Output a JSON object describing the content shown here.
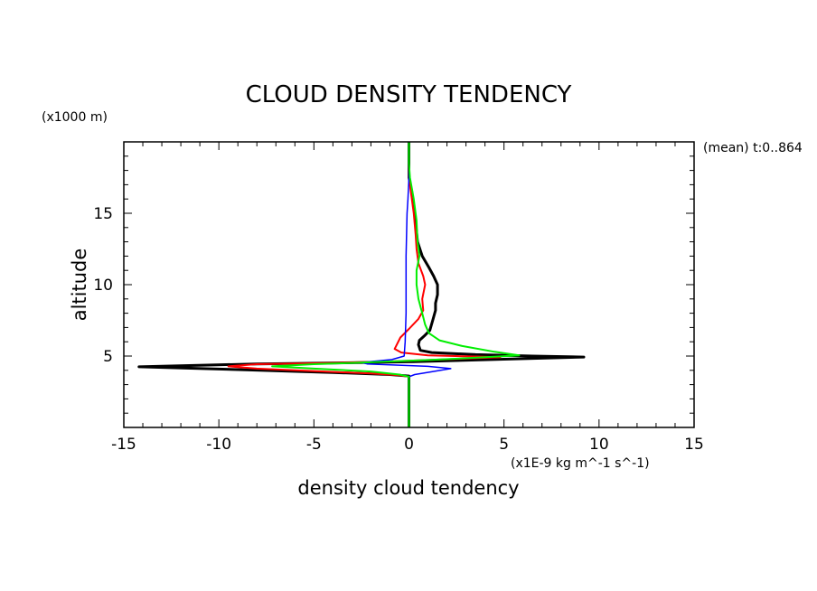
{
  "chart_data": {
    "type": "line",
    "title": "CLOUD DENSITY TENDENCY",
    "xlabel": "density cloud tendency",
    "ylabel": "altitude",
    "x_units": "(x1E-9 kg m^-1 s^-1)",
    "y_units": "(x1000 m)",
    "annotation": "(mean) t:0..864",
    "xlim": [
      -15,
      15
    ],
    "ylim": [
      0,
      20
    ],
    "xticks": [
      -15,
      -10,
      -5,
      0,
      5,
      10,
      15
    ],
    "yticks": [
      5,
      10,
      15
    ],
    "xtick_labels": [
      "-15",
      "-10",
      "-5",
      "0",
      "5",
      "10",
      "15"
    ],
    "ytick_labels": [
      "5",
      "10",
      "15"
    ],
    "grid": false,
    "series": [
      {
        "color": "#000000",
        "width": 3,
        "points": [
          [
            0,
            20
          ],
          [
            0,
            18.6
          ],
          [
            0,
            17.5
          ],
          [
            0.15,
            16.5
          ],
          [
            0.3,
            15
          ],
          [
            0.45,
            13
          ],
          [
            0.7,
            12
          ],
          [
            1.05,
            11.2
          ],
          [
            1.3,
            10.6
          ],
          [
            1.5,
            10
          ],
          [
            1.5,
            9.3
          ],
          [
            1.4,
            8.7
          ],
          [
            1.4,
            8.2
          ],
          [
            1.25,
            7.5
          ],
          [
            1.1,
            6.8
          ],
          [
            0.8,
            6.4
          ],
          [
            0.55,
            6.1
          ],
          [
            0.5,
            5.8
          ],
          [
            0.6,
            5.4
          ],
          [
            1.2,
            5.25
          ],
          [
            3.5,
            5.1
          ],
          [
            6.5,
            5
          ],
          [
            9.2,
            4.93
          ],
          [
            5,
            4.78
          ],
          [
            2,
            4.67
          ],
          [
            0.2,
            4.6
          ],
          [
            -3,
            4.53
          ],
          [
            -8,
            4.45
          ],
          [
            -14.2,
            4.25
          ],
          [
            -9,
            4.05
          ],
          [
            -4,
            3.85
          ],
          [
            -1,
            3.7
          ],
          [
            0,
            3.6
          ],
          [
            0,
            2.5
          ],
          [
            0,
            0
          ]
        ]
      },
      {
        "color": "#ff0000",
        "width": 2,
        "points": [
          [
            0,
            20
          ],
          [
            0,
            17.5
          ],
          [
            0.1,
            16.5
          ],
          [
            0.25,
            15
          ],
          [
            0.35,
            13.5
          ],
          [
            0.4,
            12.5
          ],
          [
            0.5,
            11.5
          ],
          [
            0.75,
            10.6
          ],
          [
            0.85,
            10
          ],
          [
            0.7,
            9
          ],
          [
            0.75,
            8.2
          ],
          [
            0.5,
            7.6
          ],
          [
            0,
            6.9
          ],
          [
            -0.45,
            6.3
          ],
          [
            -0.75,
            5.5
          ],
          [
            -0.4,
            5.25
          ],
          [
            1,
            5.05
          ],
          [
            3,
            4.98
          ],
          [
            4.8,
            4.92
          ],
          [
            3,
            4.82
          ],
          [
            1,
            4.72
          ],
          [
            -1,
            4.62
          ],
          [
            -4,
            4.52
          ],
          [
            -8,
            4.43
          ],
          [
            -9.5,
            4.28
          ],
          [
            -8,
            4.12
          ],
          [
            -5,
            3.95
          ],
          [
            -2,
            3.78
          ],
          [
            -0.5,
            3.65
          ],
          [
            0,
            3.55
          ],
          [
            0,
            0
          ]
        ]
      },
      {
        "color": "#0000ff",
        "width": 1.5,
        "points": [
          [
            0,
            20
          ],
          [
            0,
            17.5
          ],
          [
            -0.05,
            16
          ],
          [
            -0.1,
            15
          ],
          [
            -0.15,
            12
          ],
          [
            -0.15,
            8
          ],
          [
            -0.2,
            6
          ],
          [
            -0.25,
            5
          ],
          [
            -0.9,
            4.75
          ],
          [
            -2.5,
            4.55
          ],
          [
            -2.2,
            4.45
          ],
          [
            1,
            4.28
          ],
          [
            2.2,
            4.12
          ],
          [
            1.2,
            3.9
          ],
          [
            0.3,
            3.7
          ],
          [
            0,
            3.55
          ],
          [
            0,
            0
          ]
        ]
      },
      {
        "color": "#00ee00",
        "width": 2,
        "points": [
          [
            0,
            20
          ],
          [
            0,
            18.5
          ],
          [
            0.05,
            17.5
          ],
          [
            0.25,
            16
          ],
          [
            0.4,
            14.5
          ],
          [
            0.45,
            13
          ],
          [
            0.55,
            12
          ],
          [
            0.4,
            11
          ],
          [
            0.4,
            10
          ],
          [
            0.5,
            9
          ],
          [
            0.7,
            8
          ],
          [
            0.85,
            7.2
          ],
          [
            1.05,
            6.6
          ],
          [
            1.6,
            6.1
          ],
          [
            2.8,
            5.7
          ],
          [
            4.5,
            5.3
          ],
          [
            5.8,
            5.05
          ],
          [
            3,
            4.85
          ],
          [
            1,
            4.72
          ],
          [
            -1,
            4.62
          ],
          [
            -3,
            4.52
          ],
          [
            -5,
            4.43
          ],
          [
            -7.2,
            4.28
          ],
          [
            -5,
            4.12
          ],
          [
            -2,
            3.92
          ],
          [
            -0.5,
            3.7
          ],
          [
            0,
            3.55
          ],
          [
            0,
            0
          ]
        ]
      }
    ]
  }
}
